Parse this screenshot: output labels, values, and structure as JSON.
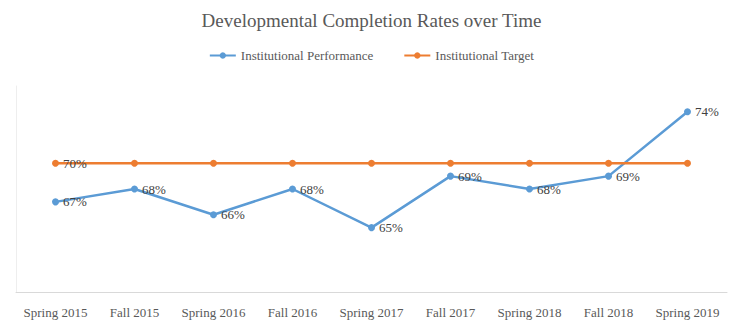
{
  "chart_data": {
    "type": "line",
    "title": "Developmental Completion Rates over Time",
    "categories": [
      "Spring 2015",
      "Fall 2015",
      "Spring 2016",
      "Fall 2016",
      "Spring 2017",
      "Fall 2017",
      "Spring 2018",
      "Fall 2018",
      "Spring 2019"
    ],
    "series": [
      {
        "name": "Institutional Performance",
        "color": "#5B9BD5",
        "marker": "circle",
        "line_style": "solid",
        "values": [
          67,
          68,
          66,
          68,
          65,
          69,
          68,
          69,
          74
        ],
        "value_labels": [
          "67%",
          "68%",
          "66%",
          "68%",
          "65%",
          "69%",
          "68%",
          "69%",
          "74%"
        ]
      },
      {
        "name": "Institutional Target",
        "color": "#ED7D31",
        "marker": "circle",
        "line_style": "solid",
        "values": [
          70,
          70,
          70,
          70,
          70,
          70,
          70,
          70,
          70
        ],
        "value_labels": [
          "70%",
          null,
          null,
          null,
          null,
          null,
          null,
          null,
          null
        ]
      }
    ],
    "ylim": [
      60,
      76
    ],
    "grid": false,
    "legend": "top",
    "data_labels": true,
    "tick_labels": "x"
  }
}
